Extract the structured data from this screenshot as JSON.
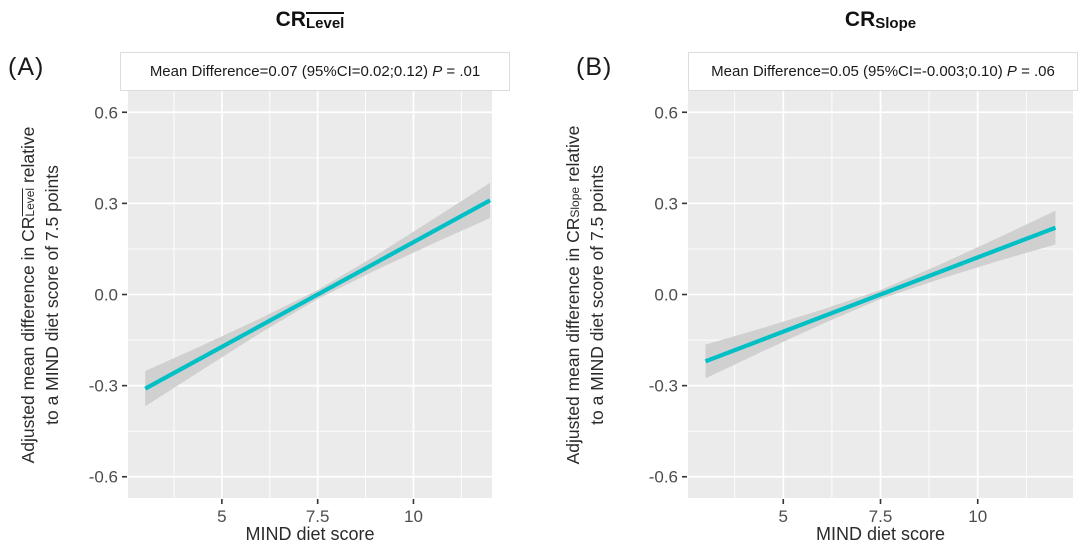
{
  "figure": {
    "background": "#ffffff"
  },
  "chart_data": [
    {
      "type": "line",
      "panel_letter": "(A)",
      "title": {
        "main": "CR",
        "sub": "Level",
        "sub_overline": true
      },
      "annotation": {
        "text": "Mean Difference=0.07 (95%CI=0.02;0.12) ",
        "p": "P",
        "p_rest": " = .01"
      },
      "ylabel": {
        "line1_prefix": "Adjusted mean difference in CR",
        "line1_sub": "Level",
        "line1_suffix": " relative",
        "line2": "to a MIND diet score of 7.5 points"
      },
      "xlabel": "MIND diet score",
      "x_ticks": {
        "values": [
          5,
          7.5,
          10
        ],
        "labels": [
          "5",
          "7.5",
          "10"
        ]
      },
      "y_ticks": {
        "values": [
          0.6,
          0.3,
          0.0,
          -0.3,
          -0.6
        ],
        "labels": [
          "0.6",
          "0.3",
          "0.0",
          "-0.3",
          "-0.6"
        ]
      },
      "x_minor": [
        3.75,
        6.25,
        8.75,
        11.25
      ],
      "y_minor": [
        0.45,
        0.15,
        -0.15,
        -0.45
      ],
      "xlim": [
        2.55,
        12.05
      ],
      "ylim": [
        -0.67,
        0.67
      ],
      "grid": true,
      "legend": "none",
      "line": {
        "x": [
          3,
          12
        ],
        "y": [
          -0.31,
          0.31
        ]
      },
      "band": {
        "x": [
          3,
          4.5,
          6,
          7.5,
          9,
          10.5,
          12
        ],
        "upper": [
          -0.252,
          -0.167,
          -0.079,
          0.015,
          0.127,
          0.247,
          0.368
        ],
        "lower": [
          -0.368,
          -0.247,
          -0.127,
          -0.015,
          0.079,
          0.167,
          0.252
        ]
      },
      "colors": {
        "line": "#00c0c6",
        "band": "#d0d0d0",
        "panel_bg": "#ebebeb",
        "grid": "#ffffff",
        "tick_text": "#4d4d4d",
        "tick_mark": "#333333"
      }
    },
    {
      "type": "line",
      "panel_letter": "(B)",
      "title": {
        "main": "CR",
        "sub": "Slope",
        "sub_overline": false
      },
      "annotation": {
        "text": "Mean Difference=0.05 (95%CI=-0.003;0.10) ",
        "p": "P",
        "p_rest": " = .06"
      },
      "ylabel": {
        "line1_prefix": "Adjusted mean difference in CR",
        "line1_sub": "Slope",
        "line1_suffix": " relative",
        "line2": "to a MIND diet score of 7.5 points"
      },
      "xlabel": "MIND diet score",
      "x_ticks": {
        "values": [
          5,
          7.5,
          10
        ],
        "labels": [
          "5",
          "7.5",
          "10"
        ]
      },
      "y_ticks": {
        "values": [
          0.6,
          0.3,
          0.0,
          -0.3,
          -0.6
        ],
        "labels": [
          "0.6",
          "0.3",
          "0.0",
          "-0.3",
          "-0.6"
        ]
      },
      "x_minor": [
        3.75,
        6.25,
        8.75,
        11.25
      ],
      "y_minor": [
        0.45,
        0.15,
        -0.15,
        -0.45
      ],
      "xlim": [
        2.55,
        12.45
      ],
      "ylim": [
        -0.67,
        0.67
      ],
      "grid": true,
      "legend": "none",
      "line": {
        "x": [
          3,
          12
        ],
        "y": [
          -0.22,
          0.22
        ]
      },
      "band": {
        "x": [
          3,
          4.5,
          6,
          7.5,
          9,
          10.5,
          12
        ],
        "upper": [
          -0.165,
          -0.109,
          -0.05,
          0.015,
          0.097,
          0.185,
          0.276
        ],
        "lower": [
          -0.276,
          -0.185,
          -0.097,
          -0.015,
          0.05,
          0.109,
          0.165
        ]
      },
      "colors": {
        "line": "#00c0c6",
        "band": "#d0d0d0",
        "panel_bg": "#ebebeb",
        "grid": "#ffffff",
        "tick_text": "#4d4d4d",
        "tick_mark": "#333333"
      }
    }
  ]
}
